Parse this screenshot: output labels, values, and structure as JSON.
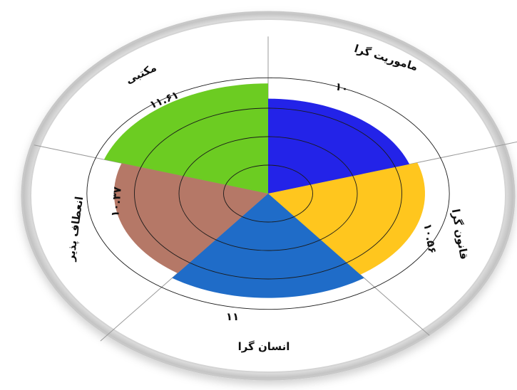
{
  "chart_data": {
    "type": "polar-area",
    "categories": [
      "ماموریت گرا",
      "قانون گرا",
      "انسان گرا",
      "انعطاف پذیر",
      "مکتبی"
    ],
    "values": [
      10,
      10.56,
      11,
      10.37,
      11.61
    ],
    "value_labels": [
      "۱۰",
      "۱۰.۵۶",
      "۱۱",
      "۱۰.۳۷",
      "۱۱.۶۱"
    ],
    "colors": [
      "#2323e8",
      "#ffc61e",
      "#1f6cc8",
      "#b57867",
      "#6ccc22"
    ],
    "rlim": [
      0,
      12
    ],
    "grid": true,
    "legend": "none"
  }
}
